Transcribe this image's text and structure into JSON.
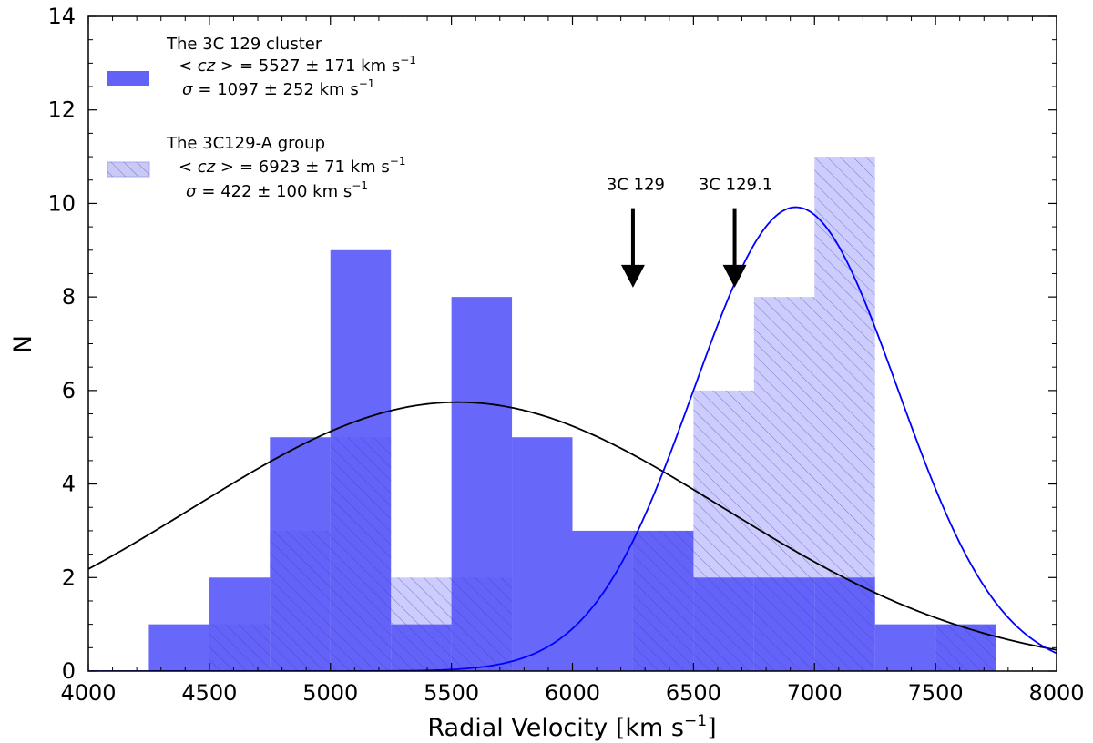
{
  "chart_data": {
    "type": "bar",
    "xlabel_main": "Radial Velocity [km s",
    "xlabel_sup": "−1",
    "xlabel_end": "]",
    "ylabel": "N",
    "xlim": [
      4000,
      8000
    ],
    "ylim": [
      0,
      14
    ],
    "x_ticks": [
      4000,
      4500,
      5000,
      5500,
      6000,
      6500,
      7000,
      7500,
      8000
    ],
    "y_ticks": [
      0,
      2,
      4,
      6,
      8,
      10,
      12,
      14
    ],
    "bin_width": 250,
    "series": [
      {
        "name": "The 3C 129 cluster",
        "style": "solid",
        "color": "#5a5af8",
        "bin_starts": [
          4250,
          4500,
          4750,
          5000,
          5250,
          5500,
          5750,
          6000,
          6250,
          6500,
          6750,
          7000,
          7250,
          7500
        ],
        "values": [
          1,
          2,
          5,
          9,
          1,
          8,
          5,
          3,
          3,
          2,
          2,
          2,
          1,
          1
        ],
        "mean_label": "= 5527 ± 171 km s",
        "sigma_label": "= 1097 ± 252 km s",
        "fit": {
          "type": "gaussian",
          "mean": 5527,
          "sigma": 1097,
          "amplitude": 5.75,
          "color": "#000000"
        }
      },
      {
        "name": "The 3C129-A group",
        "style": "hatched",
        "color": "#5a5af8",
        "bin_starts": [
          4500,
          4750,
          5000,
          5250,
          5500,
          6250,
          6500,
          6750,
          7000,
          7500
        ],
        "values": [
          1,
          3,
          5,
          2,
          2,
          3,
          6,
          8,
          11,
          1
        ],
        "mean_label": "= 6923 ± 71 km s",
        "sigma_label": "= 422 ± 100 km s",
        "fit": {
          "type": "gaussian",
          "mean": 6923,
          "sigma": 422,
          "amplitude": 9.92,
          "color": "#0000ff"
        }
      }
    ],
    "legend": {
      "cz_symbol": "< cz >",
      "sigma_symbol": "σ",
      "superscript": "−1"
    },
    "annotations": [
      {
        "label": "3C 129",
        "x": 6250,
        "y_top": 9.9,
        "y_tip": 8.2
      },
      {
        "label": "3C 129.1",
        "x": 6670,
        "y_top": 9.9,
        "y_tip": 8.2
      }
    ]
  }
}
